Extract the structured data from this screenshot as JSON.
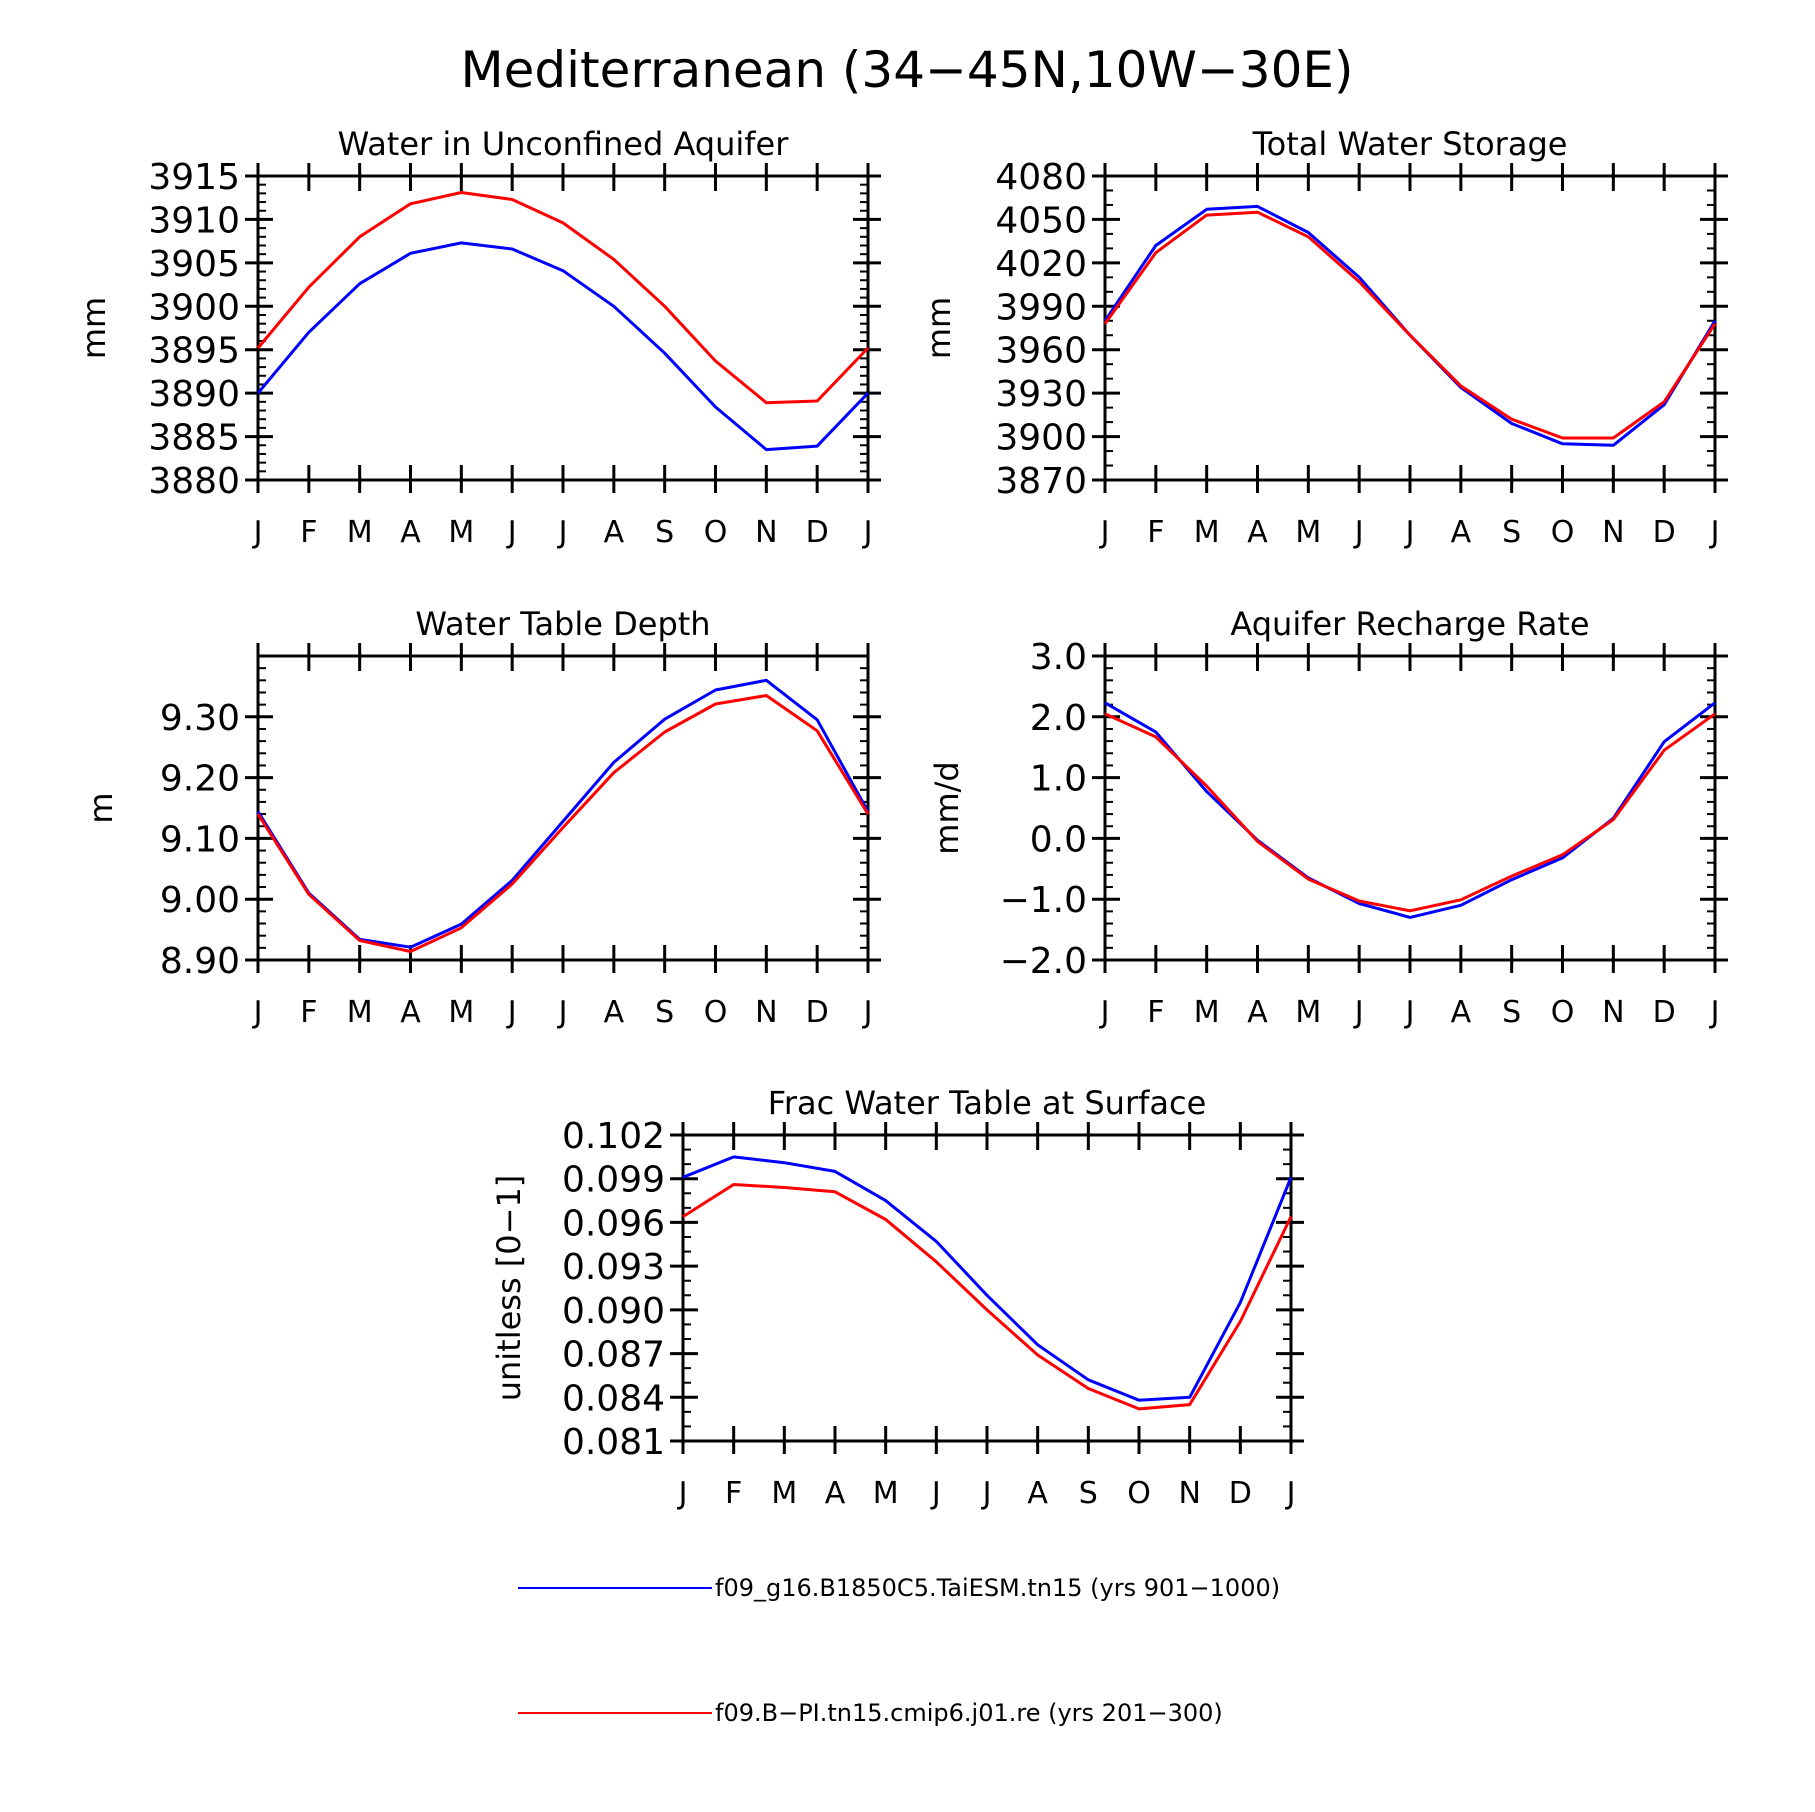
{
  "figure": {
    "title": "Mediterranean (34−45N,10W−30E)"
  },
  "months": [
    "J",
    "F",
    "M",
    "A",
    "M",
    "J",
    "J",
    "A",
    "S",
    "O",
    "N",
    "D",
    "J"
  ],
  "series_colors": {
    "blue": "#0000ff",
    "red": "#ff0000"
  },
  "legend": [
    {
      "color": "#0000ff",
      "label": "f09_g16.B1850C5.TaiESM.tn15 (yrs 901−1000)"
    },
    {
      "color": "#ff0000",
      "label": "f09.B−PI.tn15.cmip6.j01.re (yrs 201−300)"
    }
  ],
  "chart_data": [
    {
      "type": "line",
      "title": "Water in Unconfined Aquifer",
      "ylabel": "mm",
      "ylim": [
        3880,
        3915
      ],
      "ymajor": 5,
      "yminor": 1,
      "yticks": [
        "3880",
        "3885",
        "3890",
        "3895",
        "3900",
        "3905",
        "3910",
        "3915"
      ],
      "x": [
        "J",
        "F",
        "M",
        "A",
        "M",
        "J",
        "J",
        "A",
        "S",
        "O",
        "N",
        "D",
        "J"
      ],
      "series": [
        {
          "color": "#0000ff",
          "values": [
            3890.0,
            3897.0,
            3902.6,
            3906.1,
            3907.3,
            3906.6,
            3904.1,
            3900.0,
            3894.6,
            3888.4,
            3883.5,
            3883.9,
            3890.0
          ]
        },
        {
          "color": "#ff0000",
          "values": [
            3895.2,
            3902.2,
            3908.0,
            3911.8,
            3913.1,
            3912.3,
            3909.6,
            3905.4,
            3900.0,
            3893.7,
            3888.9,
            3889.1,
            3895.2
          ]
        }
      ]
    },
    {
      "type": "line",
      "title": "Total Water Storage",
      "ylabel": "mm",
      "ylim": [
        3870,
        4080
      ],
      "ymajor": 30,
      "yminor": 10,
      "yticks": [
        "3870",
        "3900",
        "3930",
        "3960",
        "3990",
        "4020",
        "4050",
        "4080"
      ],
      "x": [
        "J",
        "F",
        "M",
        "A",
        "M",
        "J",
        "J",
        "A",
        "S",
        "O",
        "N",
        "D",
        "J"
      ],
      "series": [
        {
          "color": "#0000ff",
          "values": [
            3980,
            4032,
            4057,
            4059,
            4041,
            4010,
            3970,
            3934,
            3909,
            3895,
            3894,
            3922,
            3980
          ]
        },
        {
          "color": "#ff0000",
          "values": [
            3978,
            4027,
            4053,
            4055,
            4038,
            4007,
            3970,
            3935,
            3912,
            3899,
            3899,
            3924,
            3978
          ]
        }
      ]
    },
    {
      "type": "line",
      "title": "Water Table Depth",
      "ylabel": "m",
      "ylim": [
        8.9,
        9.4
      ],
      "ymajor": 0.1,
      "yminor": 0.02,
      "yticks": [
        "8.90",
        "9.00",
        "9.10",
        "9.20",
        "9.30"
      ],
      "x": [
        "J",
        "F",
        "M",
        "A",
        "M",
        "J",
        "J",
        "A",
        "S",
        "O",
        "N",
        "D",
        "J"
      ],
      "series": [
        {
          "color": "#0000ff",
          "values": [
            9.144,
            9.01,
            8.934,
            8.921,
            8.959,
            9.031,
            9.128,
            9.225,
            9.296,
            9.344,
            9.36,
            9.295,
            9.144
          ]
        },
        {
          "color": "#ff0000",
          "values": [
            9.14,
            9.008,
            8.932,
            8.914,
            8.953,
            9.025,
            9.118,
            9.208,
            9.275,
            9.321,
            9.335,
            9.277,
            9.14
          ]
        }
      ]
    },
    {
      "type": "line",
      "title": "Aquifer Recharge Rate",
      "ylabel": "mm/d",
      "ylim": [
        -2.0,
        3.0
      ],
      "ymajor": 1.0,
      "yminor": 0.2,
      "yticks": [
        "−2.0",
        "−1.0",
        "0.0",
        "1.0",
        "2.0",
        "3.0"
      ],
      "x": [
        "J",
        "F",
        "M",
        "A",
        "M",
        "J",
        "J",
        "A",
        "S",
        "O",
        "N",
        "D",
        "J"
      ],
      "series": [
        {
          "color": "#0000ff",
          "values": [
            2.23,
            1.75,
            0.77,
            -0.03,
            -0.65,
            -1.07,
            -1.3,
            -1.1,
            -0.68,
            -0.32,
            0.33,
            1.59,
            2.23
          ]
        },
        {
          "color": "#ff0000",
          "values": [
            2.05,
            1.67,
            0.86,
            -0.05,
            -0.67,
            -1.03,
            -1.19,
            -1.01,
            -0.62,
            -0.27,
            0.31,
            1.45,
            2.05
          ]
        }
      ]
    },
    {
      "type": "line",
      "title": "Frac Water Table at Surface",
      "ylabel": "unitless [0−1]",
      "ylim": [
        0.081,
        0.102
      ],
      "ymajor": 0.003,
      "yminor": 0.001,
      "yticks": [
        "0.081",
        "0.084",
        "0.087",
        "0.090",
        "0.093",
        "0.096",
        "0.099",
        "0.102"
      ],
      "x": [
        "J",
        "F",
        "M",
        "A",
        "M",
        "J",
        "J",
        "A",
        "S",
        "O",
        "N",
        "D",
        "J"
      ],
      "series": [
        {
          "color": "#0000ff",
          "values": [
            0.0991,
            0.1005,
            0.1001,
            0.0995,
            0.0975,
            0.0947,
            0.091,
            0.0876,
            0.0852,
            0.0838,
            0.084,
            0.0905,
            0.0991
          ]
        },
        {
          "color": "#ff0000",
          "values": [
            0.0964,
            0.0986,
            0.0984,
            0.0981,
            0.0962,
            0.0933,
            0.09,
            0.0869,
            0.0846,
            0.0832,
            0.0835,
            0.0892,
            0.0964
          ]
        }
      ]
    }
  ]
}
